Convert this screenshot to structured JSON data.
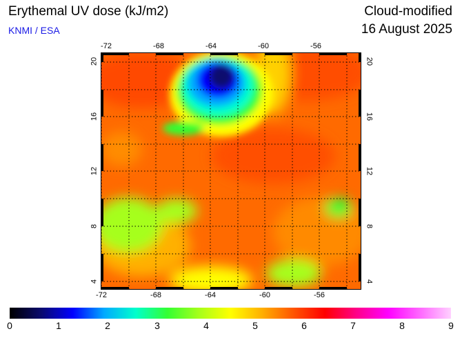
{
  "header": {
    "title": "Erythemal UV dose (kJ/m2)",
    "source": "KNMI / ESA",
    "product": "Cloud-modified",
    "date": "16 August 2025"
  },
  "map": {
    "lon_range": [
      -73,
      -53
    ],
    "lat_range": [
      3.5,
      20.5
    ],
    "lon_ticks": [
      "-72",
      "-68",
      "-64",
      "-60",
      "-56"
    ],
    "lat_ticks": [
      "20",
      "16",
      "12",
      "8",
      "4"
    ],
    "grid": true,
    "coastline_color": "#000000"
  },
  "colorbar": {
    "labels": [
      "0",
      "1",
      "2",
      "3",
      "4",
      "5",
      "6",
      "7",
      "8",
      "9"
    ],
    "min": 0,
    "max": 9,
    "colors": [
      "#000000",
      "#0a0a6e",
      "#0000ff",
      "#00aaff",
      "#00ffcc",
      "#33ff33",
      "#a6ff1a",
      "#ffff00",
      "#ffb000",
      "#ff5500",
      "#ff0000",
      "#ff0088",
      "#ff00ff",
      "#ff66ff",
      "#ffd0ff"
    ]
  }
}
